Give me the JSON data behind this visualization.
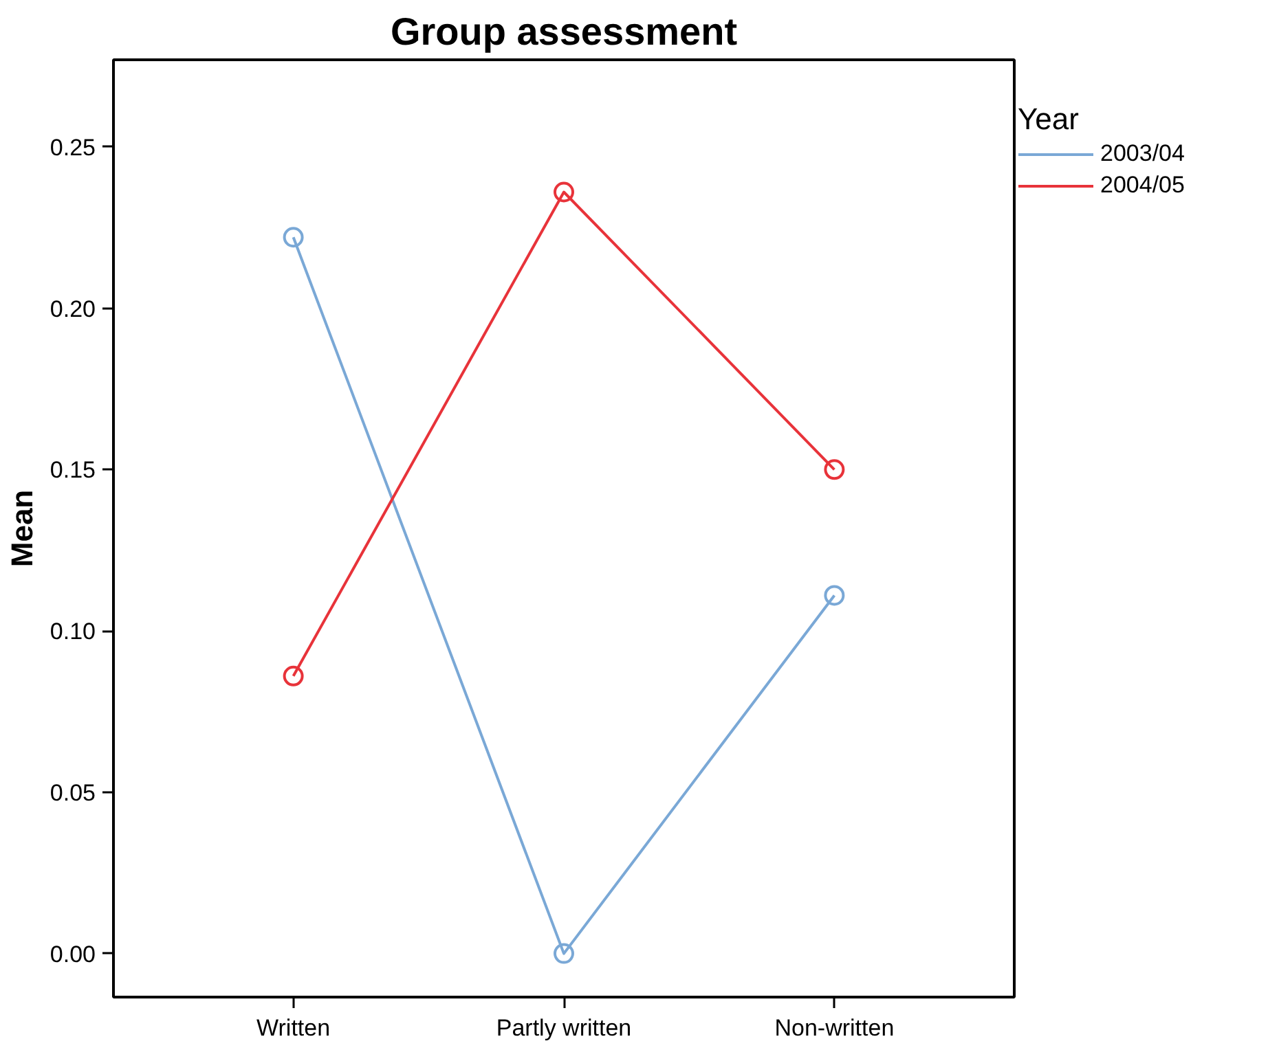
{
  "chart_data": {
    "type": "line",
    "title": "Group assessment",
    "ylabel": "Mean",
    "legend_title": "Year",
    "categories": [
      "Written",
      "Partly written",
      "Non-written"
    ],
    "series": [
      {
        "name": "2003/04",
        "color": "#7aa8d6",
        "values": [
          0.222,
          0.0,
          0.111
        ]
      },
      {
        "name": "2004/05",
        "color": "#e8333a",
        "values": [
          0.086,
          0.236,
          0.15
        ]
      }
    ],
    "ylim": [
      -0.0135,
      0.277
    ],
    "yticks": [
      {
        "value": 0,
        "label": "0.00"
      },
      {
        "value": 0.05,
        "label": "0.05"
      },
      {
        "value": 0.1,
        "label": "0.10"
      },
      {
        "value": 0.15,
        "label": "0.15"
      },
      {
        "value": 0.2,
        "label": "0.20"
      },
      {
        "value": 0.25,
        "label": "0.25"
      }
    ],
    "grid": false,
    "legend": "top right",
    "marker": "circle",
    "line_style": "solid"
  }
}
